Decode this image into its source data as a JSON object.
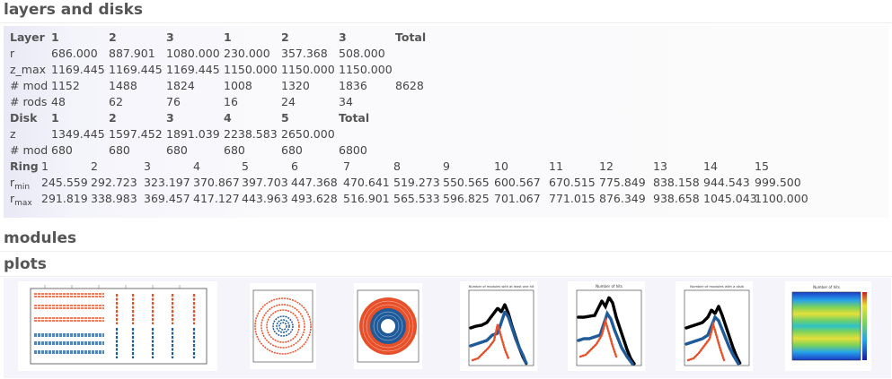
{
  "sections": {
    "layers_title": "layers and disks",
    "modules_title": "modules",
    "plots_title": "plots"
  },
  "layers": {
    "header": [
      "Layer",
      "1",
      "2",
      "3",
      "1",
      "2",
      "3",
      "Total"
    ],
    "rows": [
      [
        "r",
        "686.000",
        "887.901",
        "1080.000",
        "230.000",
        "357.368",
        "508.000",
        ""
      ],
      [
        "z_max",
        "1169.445",
        "1169.445",
        "1169.445",
        "1150.000",
        "1150.000",
        "1150.000",
        ""
      ],
      [
        "# mod",
        "1152",
        "1488",
        "1824",
        "1008",
        "1320",
        "1836",
        "8628"
      ],
      [
        "# rods",
        "48",
        "62",
        "76",
        "16",
        "24",
        "34",
        ""
      ]
    ]
  },
  "disks": {
    "header": [
      "Disk",
      "1",
      "2",
      "3",
      "4",
      "5",
      "Total"
    ],
    "rows": [
      [
        "z",
        "1349.445",
        "1597.452",
        "1891.039",
        "2238.583",
        "2650.000",
        ""
      ],
      [
        "# mod",
        "680",
        "680",
        "680",
        "680",
        "680",
        "6800"
      ]
    ]
  },
  "rings": {
    "header": [
      "Ring",
      "1",
      "2",
      "3",
      "4",
      "5",
      "6",
      "7",
      "8",
      "9",
      "10",
      "11",
      "12",
      "13",
      "14",
      "15"
    ],
    "rmin_label": "r",
    "rmin_sub": "min",
    "rmax_label": "r",
    "rmax_sub": "max",
    "rmin": [
      "245.559",
      "292.723",
      "323.197",
      "370.867",
      "397.703",
      "447.368",
      "470.641",
      "519.273",
      "550.565",
      "600.567",
      "670.515",
      "775.849",
      "838.158",
      "944.543",
      "999.500"
    ],
    "rmax": [
      "291.819",
      "338.983",
      "369.457",
      "417.127",
      "443.963",
      "493.628",
      "516.901",
      "565.533",
      "596.825",
      "701.067",
      "771.015",
      "876.349",
      "938.658",
      "1045.043",
      "1100.000"
    ]
  },
  "plots": {
    "colors": {
      "orange": "#e8502a",
      "blue": "#1f5b9a",
      "black": "#000000"
    },
    "thumb_titles": [
      "",
      "",
      "",
      "Number of modules with at least one hit",
      "Number of hits",
      "Number of modules with a stub",
      "Number of hits"
    ]
  }
}
